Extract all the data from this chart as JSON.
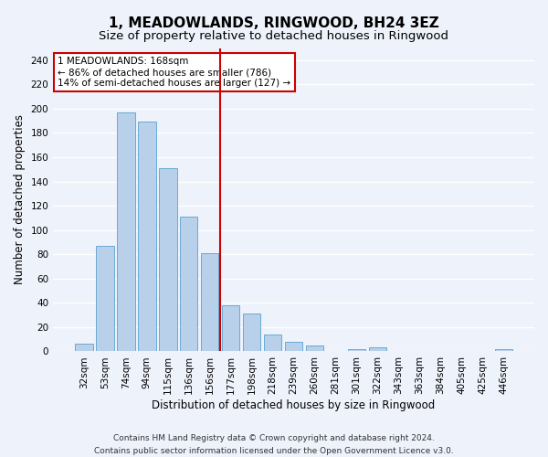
{
  "title": "1, MEADOWLANDS, RINGWOOD, BH24 3EZ",
  "subtitle": "Size of property relative to detached houses in Ringwood",
  "xlabel": "Distribution of detached houses by size in Ringwood",
  "ylabel": "Number of detached properties",
  "categories": [
    "32sqm",
    "53sqm",
    "74sqm",
    "94sqm",
    "115sqm",
    "136sqm",
    "156sqm",
    "177sqm",
    "198sqm",
    "218sqm",
    "239sqm",
    "260sqm",
    "281sqm",
    "301sqm",
    "322sqm",
    "343sqm",
    "363sqm",
    "384sqm",
    "405sqm",
    "425sqm",
    "446sqm"
  ],
  "values": [
    6,
    87,
    197,
    189,
    151,
    111,
    81,
    38,
    31,
    14,
    8,
    5,
    0,
    2,
    3,
    0,
    0,
    0,
    0,
    0,
    2
  ],
  "bar_color": "#b8d0ea",
  "bar_edgecolor": "#6aaad4",
  "vline_x": 6.5,
  "vline_color": "#cc0000",
  "annotation_line1": "1 MEADOWLANDS: 168sqm",
  "annotation_line2": "← 86% of detached houses are smaller (786)",
  "annotation_line3": "14% of semi-detached houses are larger (127) →",
  "annotation_box_color": "#ffffff",
  "annotation_box_edgecolor": "#cc0000",
  "ylim": [
    0,
    250
  ],
  "yticks": [
    0,
    20,
    40,
    60,
    80,
    100,
    120,
    140,
    160,
    180,
    200,
    220,
    240
  ],
  "footnote1": "Contains HM Land Registry data © Crown copyright and database right 2024.",
  "footnote2": "Contains public sector information licensed under the Open Government Licence v3.0.",
  "background_color": "#eef2fb",
  "grid_color": "#ffffff",
  "title_fontsize": 11,
  "subtitle_fontsize": 9.5,
  "xlabel_fontsize": 8.5,
  "ylabel_fontsize": 8.5,
  "tick_fontsize": 7.5,
  "annotation_fontsize": 7.5,
  "footnote_fontsize": 6.5
}
